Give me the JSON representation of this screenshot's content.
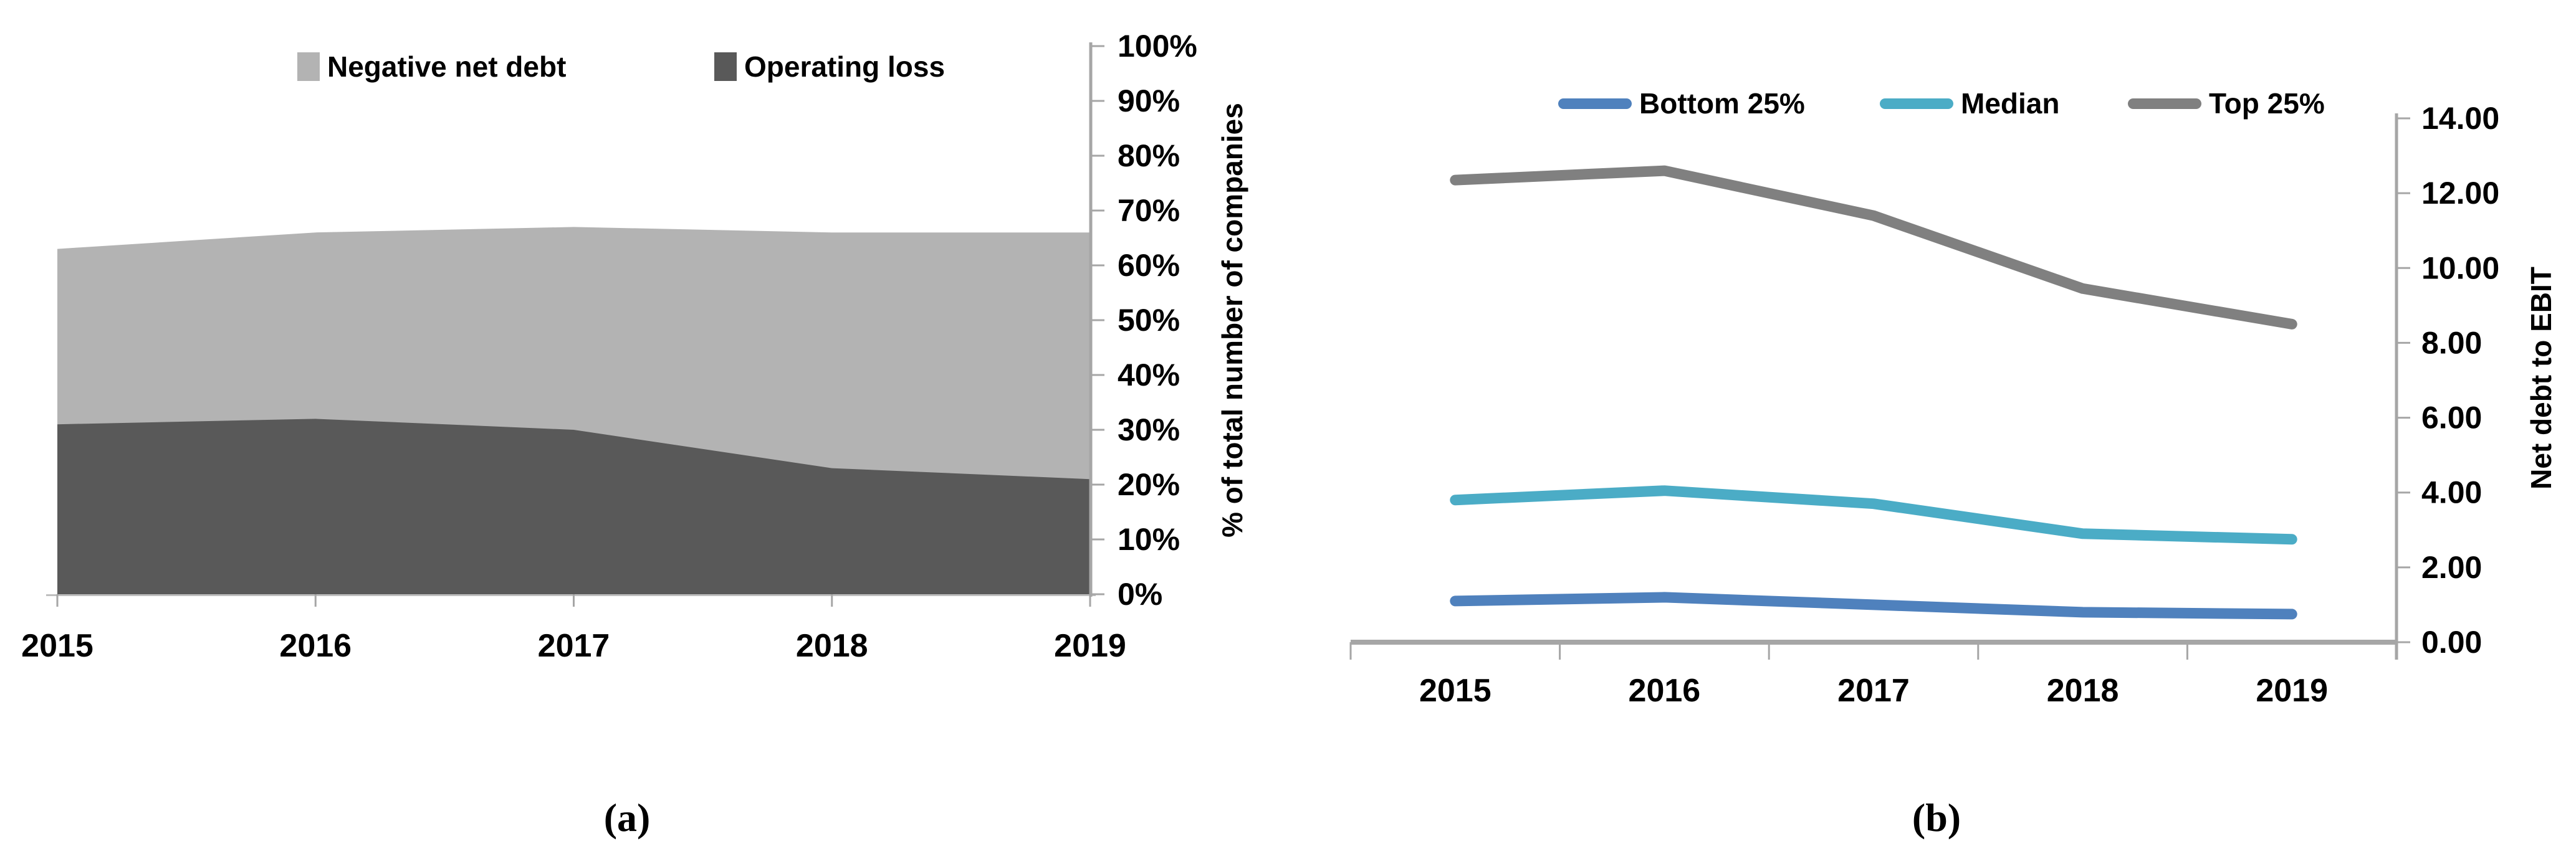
{
  "figure": {
    "captions": {
      "a": "(a)",
      "b": "(b)"
    }
  },
  "chart_data": [
    {
      "type": "area",
      "panel": "a",
      "title": "",
      "categories": [
        "2015",
        "2016",
        "2017",
        "2018",
        "2019"
      ],
      "series": [
        {
          "name": "Negative net debt",
          "values": [
            63,
            66,
            67,
            66,
            66
          ],
          "color": "#B3B3B3"
        },
        {
          "name": "Operating loss",
          "values": [
            31,
            32,
            30,
            23,
            21
          ],
          "color": "#595959"
        }
      ],
      "stacked": false,
      "xlabel": "",
      "ylabel": "% of total number of companies",
      "ylim": [
        0,
        100
      ],
      "ytick_step": 10,
      "ytick_suffix": "%",
      "yaxis_side": "right",
      "grid": false,
      "legend_position": "top"
    },
    {
      "type": "line",
      "panel": "b",
      "title": "",
      "categories": [
        "2015",
        "2016",
        "2017",
        "2018",
        "2019"
      ],
      "series": [
        {
          "name": "Bottom 25%",
          "values": [
            1.1,
            1.2,
            1.0,
            0.8,
            0.75
          ],
          "color": "#4F81BD"
        },
        {
          "name": "Median",
          "values": [
            3.8,
            4.05,
            3.7,
            2.9,
            2.75
          ],
          "color": "#4BACC6"
        },
        {
          "name": "Top 25%",
          "values": [
            12.35,
            12.6,
            11.4,
            9.45,
            8.5
          ],
          "color": "#808080"
        }
      ],
      "xlabel": "",
      "ylabel": "Net debt to EBIT",
      "ylim": [
        0,
        14
      ],
      "ytick_step": 2,
      "ytick_decimals": 2,
      "yaxis_side": "right",
      "grid": false,
      "legend_position": "top",
      "axis_color": "#A6A6A6"
    }
  ]
}
